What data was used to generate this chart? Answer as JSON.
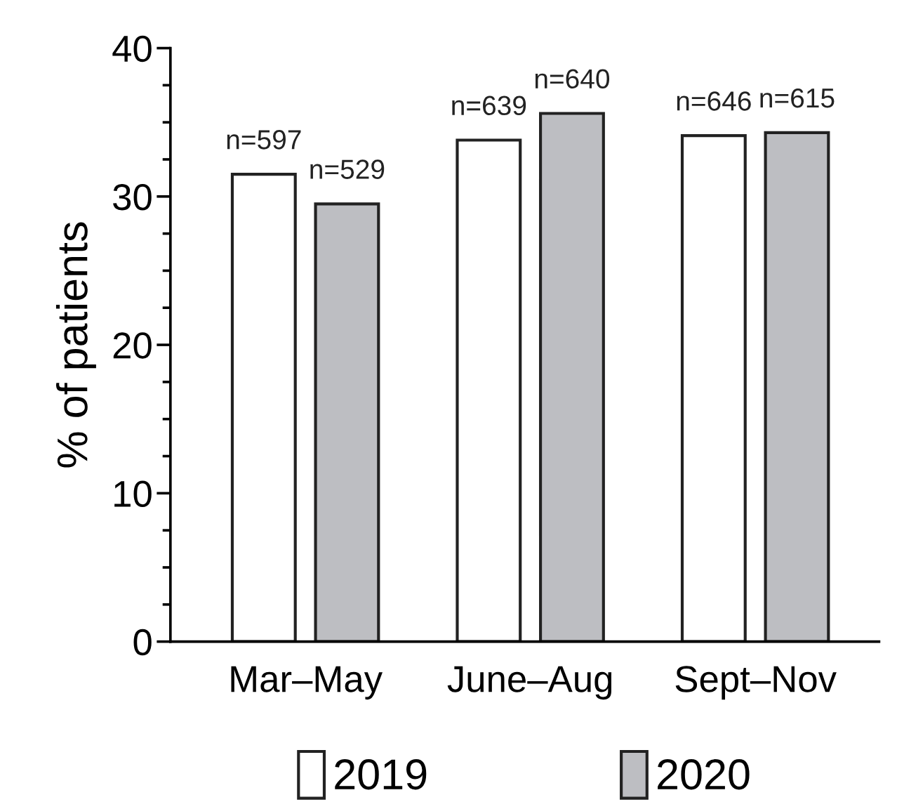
{
  "chart_data": {
    "type": "bar",
    "ylabel": "% of patients",
    "categories": [
      "Mar–May",
      "June–Aug",
      "Sept–Nov"
    ],
    "series": [
      {
        "name": "2019",
        "color": "#ffffff",
        "values": [
          31.5,
          33.8,
          34.1
        ]
      },
      {
        "name": "2020",
        "color": "#bdbec2",
        "values": [
          29.5,
          35.6,
          34.3
        ]
      }
    ],
    "annotations": [
      "n=597",
      "n=639",
      "n=646",
      "n=529",
      "n=640",
      "n=615"
    ],
    "ylim": [
      0,
      40
    ],
    "yticks": [
      0,
      10,
      20,
      30,
      40
    ],
    "legend": "bottom",
    "grid": false
  }
}
